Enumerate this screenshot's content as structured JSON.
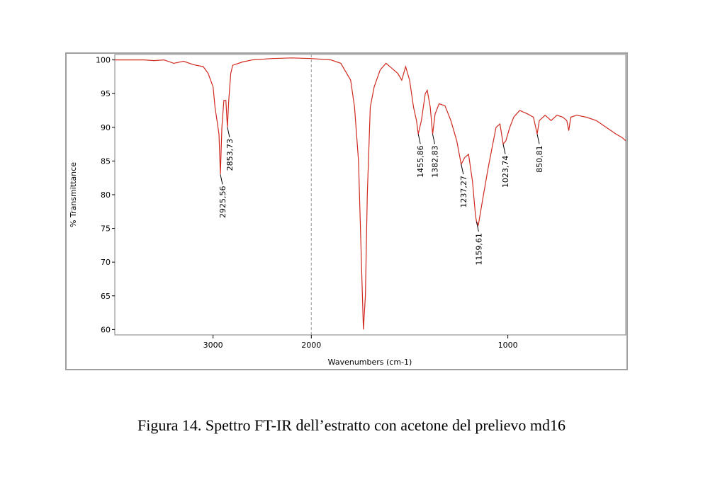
{
  "chart_data": {
    "type": "line",
    "ylabel": "% Transmittance",
    "xlabel": "Wavenumbers (cm-1)",
    "xlim": [
      4000,
      400
    ],
    "ylim": [
      59.2,
      100.8
    ],
    "xbreak": {
      "at": 2000,
      "factor": 2
    },
    "xticks": [
      3000,
      2000,
      1000
    ],
    "yticks": [
      60,
      65,
      70,
      75,
      80,
      85,
      90,
      95,
      100
    ],
    "series": [
      {
        "color": "#d02a20",
        "x": [
          4000,
          3700,
          3600,
          3500,
          3400,
          3300,
          3200,
          3100,
          3050,
          3000,
          2980,
          2960,
          2940,
          2925.56,
          2910,
          2890,
          2870,
          2853.73,
          2840,
          2820,
          2800,
          2700,
          2600,
          2400,
          2200,
          2000,
          1900,
          1850,
          1800,
          1780,
          1760,
          1745,
          1735,
          1725,
          1715,
          1700,
          1680,
          1650,
          1620,
          1600,
          1580,
          1560,
          1540,
          1520,
          1500,
          1480,
          1465,
          1455.86,
          1440,
          1420,
          1410,
          1395,
          1382.83,
          1370,
          1350,
          1320,
          1290,
          1260,
          1237.27,
          1220,
          1200,
          1180,
          1165,
          1159.61,
          1150,
          1130,
          1100,
          1080,
          1060,
          1040,
          1023.74,
          1010,
          990,
          970,
          940,
          900,
          870,
          850.81,
          840,
          810,
          780,
          750,
          720,
          700,
          690,
          680,
          650,
          600,
          550,
          500,
          450,
          420,
          400
        ],
        "values": [
          100,
          100,
          99.9,
          100,
          99.5,
          99.8,
          99.3,
          99,
          98,
          96,
          93,
          91,
          89,
          83,
          90,
          94,
          94,
          90,
          94,
          98,
          99.2,
          99.7,
          100,
          100.2,
          100.3,
          100.2,
          100,
          99.5,
          97,
          93,
          85,
          70,
          60,
          65,
          80,
          93,
          96,
          98.5,
          99.5,
          99,
          98.5,
          98,
          97,
          99,
          97,
          93,
          91,
          89,
          91,
          95,
          95.5,
          93,
          89,
          92,
          93.5,
          93.2,
          91,
          88,
          84.5,
          85.5,
          86,
          82,
          77,
          76,
          75.5,
          79,
          84,
          87,
          90,
          90.5,
          87.5,
          88,
          90,
          91.5,
          92.5,
          92,
          91.5,
          89,
          91,
          91.8,
          91,
          91.8,
          91.5,
          91,
          89.5,
          91.5,
          91.8,
          91.5,
          91,
          90,
          89,
          88.5,
          88
        ]
      }
    ],
    "annotations": [
      {
        "x": 2925.56,
        "label": "2925,56"
      },
      {
        "x": 2853.73,
        "label": "2853,73"
      },
      {
        "x": 1455.86,
        "label": "1455,86"
      },
      {
        "x": 1382.83,
        "label": "1382,83"
      },
      {
        "x": 1237.27,
        "label": "1237,27"
      },
      {
        "x": 1159.61,
        "label": "1159,61"
      },
      {
        "x": 1023.74,
        "label": "1023,74"
      },
      {
        "x": 850.81,
        "label": "850,81"
      }
    ]
  },
  "caption": "Figura 14. Spettro FT-IR dell’estratto con acetone del prelievo md16"
}
